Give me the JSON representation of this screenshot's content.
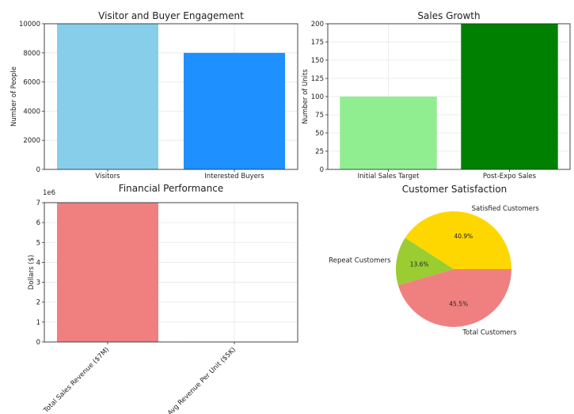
{
  "chart_data": [
    {
      "type": "bar",
      "title": "Visitor and Buyer Engagement",
      "categories": [
        "Visitors",
        "Interested Buyers"
      ],
      "values": [
        10000,
        8000
      ],
      "colors": [
        "#87ceeb",
        "#1e90ff"
      ],
      "xlabel": "",
      "ylabel": "Number of People",
      "ylim": [
        0,
        10000
      ],
      "yticks": [
        "0",
        "2000",
        "4000",
        "6000",
        "8000",
        "10000"
      ],
      "ytick_values": [
        0,
        2000,
        4000,
        6000,
        8000,
        10000
      ],
      "grid": true
    },
    {
      "type": "bar",
      "title": "Sales Growth",
      "categories": [
        "Initial Sales Target",
        "Post-Expo Sales"
      ],
      "values": [
        100,
        200
      ],
      "colors": [
        "#90ee90",
        "#008000"
      ],
      "xlabel": "",
      "ylabel": "Number of Units",
      "ylim": [
        0,
        200
      ],
      "yticks": [
        "0",
        "25",
        "50",
        "75",
        "100",
        "125",
        "150",
        "175",
        "200"
      ],
      "ytick_values": [
        0,
        25,
        50,
        75,
        100,
        125,
        150,
        175,
        200
      ],
      "grid": true
    },
    {
      "type": "bar",
      "title": "Financial Performance",
      "categories": [
        "Total Sales Revenue ($7M)",
        "Avg Revenue Per Unit ($5K)"
      ],
      "values": [
        7000000,
        5000
      ],
      "colors": [
        "#f08080",
        "#f08080"
      ],
      "xlabel": "",
      "ylabel": "Dollars ($)",
      "offset_label": "1e6",
      "ylim": [
        0,
        7000000
      ],
      "yticks": [
        "0",
        "1",
        "2",
        "3",
        "4",
        "5",
        "6",
        "7"
      ],
      "ytick_values": [
        0,
        1000000,
        2000000,
        3000000,
        4000000,
        5000000,
        6000000,
        7000000
      ],
      "grid": true
    },
    {
      "type": "pie",
      "title": "Customer Satisfaction",
      "labels": [
        "Satisfied Customers",
        "Repeat Customers",
        "Total Customers"
      ],
      "values": [
        40.9,
        13.6,
        45.5
      ],
      "pct_labels": [
        "40.9%",
        "13.6%",
        "45.5%"
      ],
      "colors": [
        "#ffd700",
        "#9acd32",
        "#f08080"
      ]
    }
  ]
}
